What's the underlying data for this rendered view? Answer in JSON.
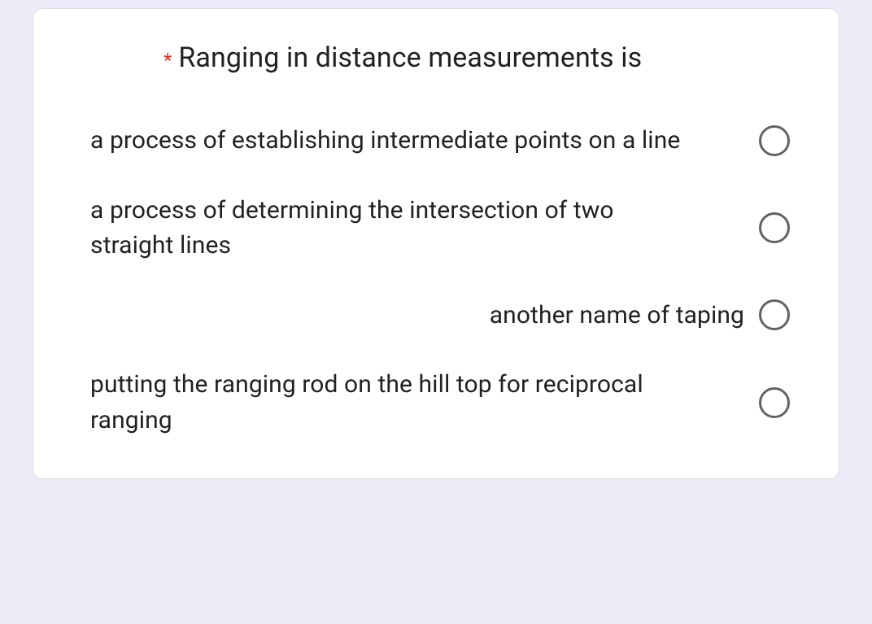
{
  "question": {
    "required_marker": "*",
    "text": "Ranging in distance measurements is",
    "required_color": "#d93025",
    "text_color": "#202124"
  },
  "options": [
    {
      "label": "a process of establishing intermediate points on a line",
      "align": "left"
    },
    {
      "label": "a process of determining the intersection of two straight lines",
      "align": "left"
    },
    {
      "label": "another name of taping",
      "align": "right"
    },
    {
      "label": "putting the ranging rod on the hill top for reciprocal ranging",
      "align": "left"
    }
  ],
  "styling": {
    "background_color": "#f0ebf8",
    "card_background": "#ffffff",
    "card_border_color": "#dadce0",
    "radio_border_color": "#5f6368",
    "option_font_size": 30,
    "question_font_size": 34
  }
}
